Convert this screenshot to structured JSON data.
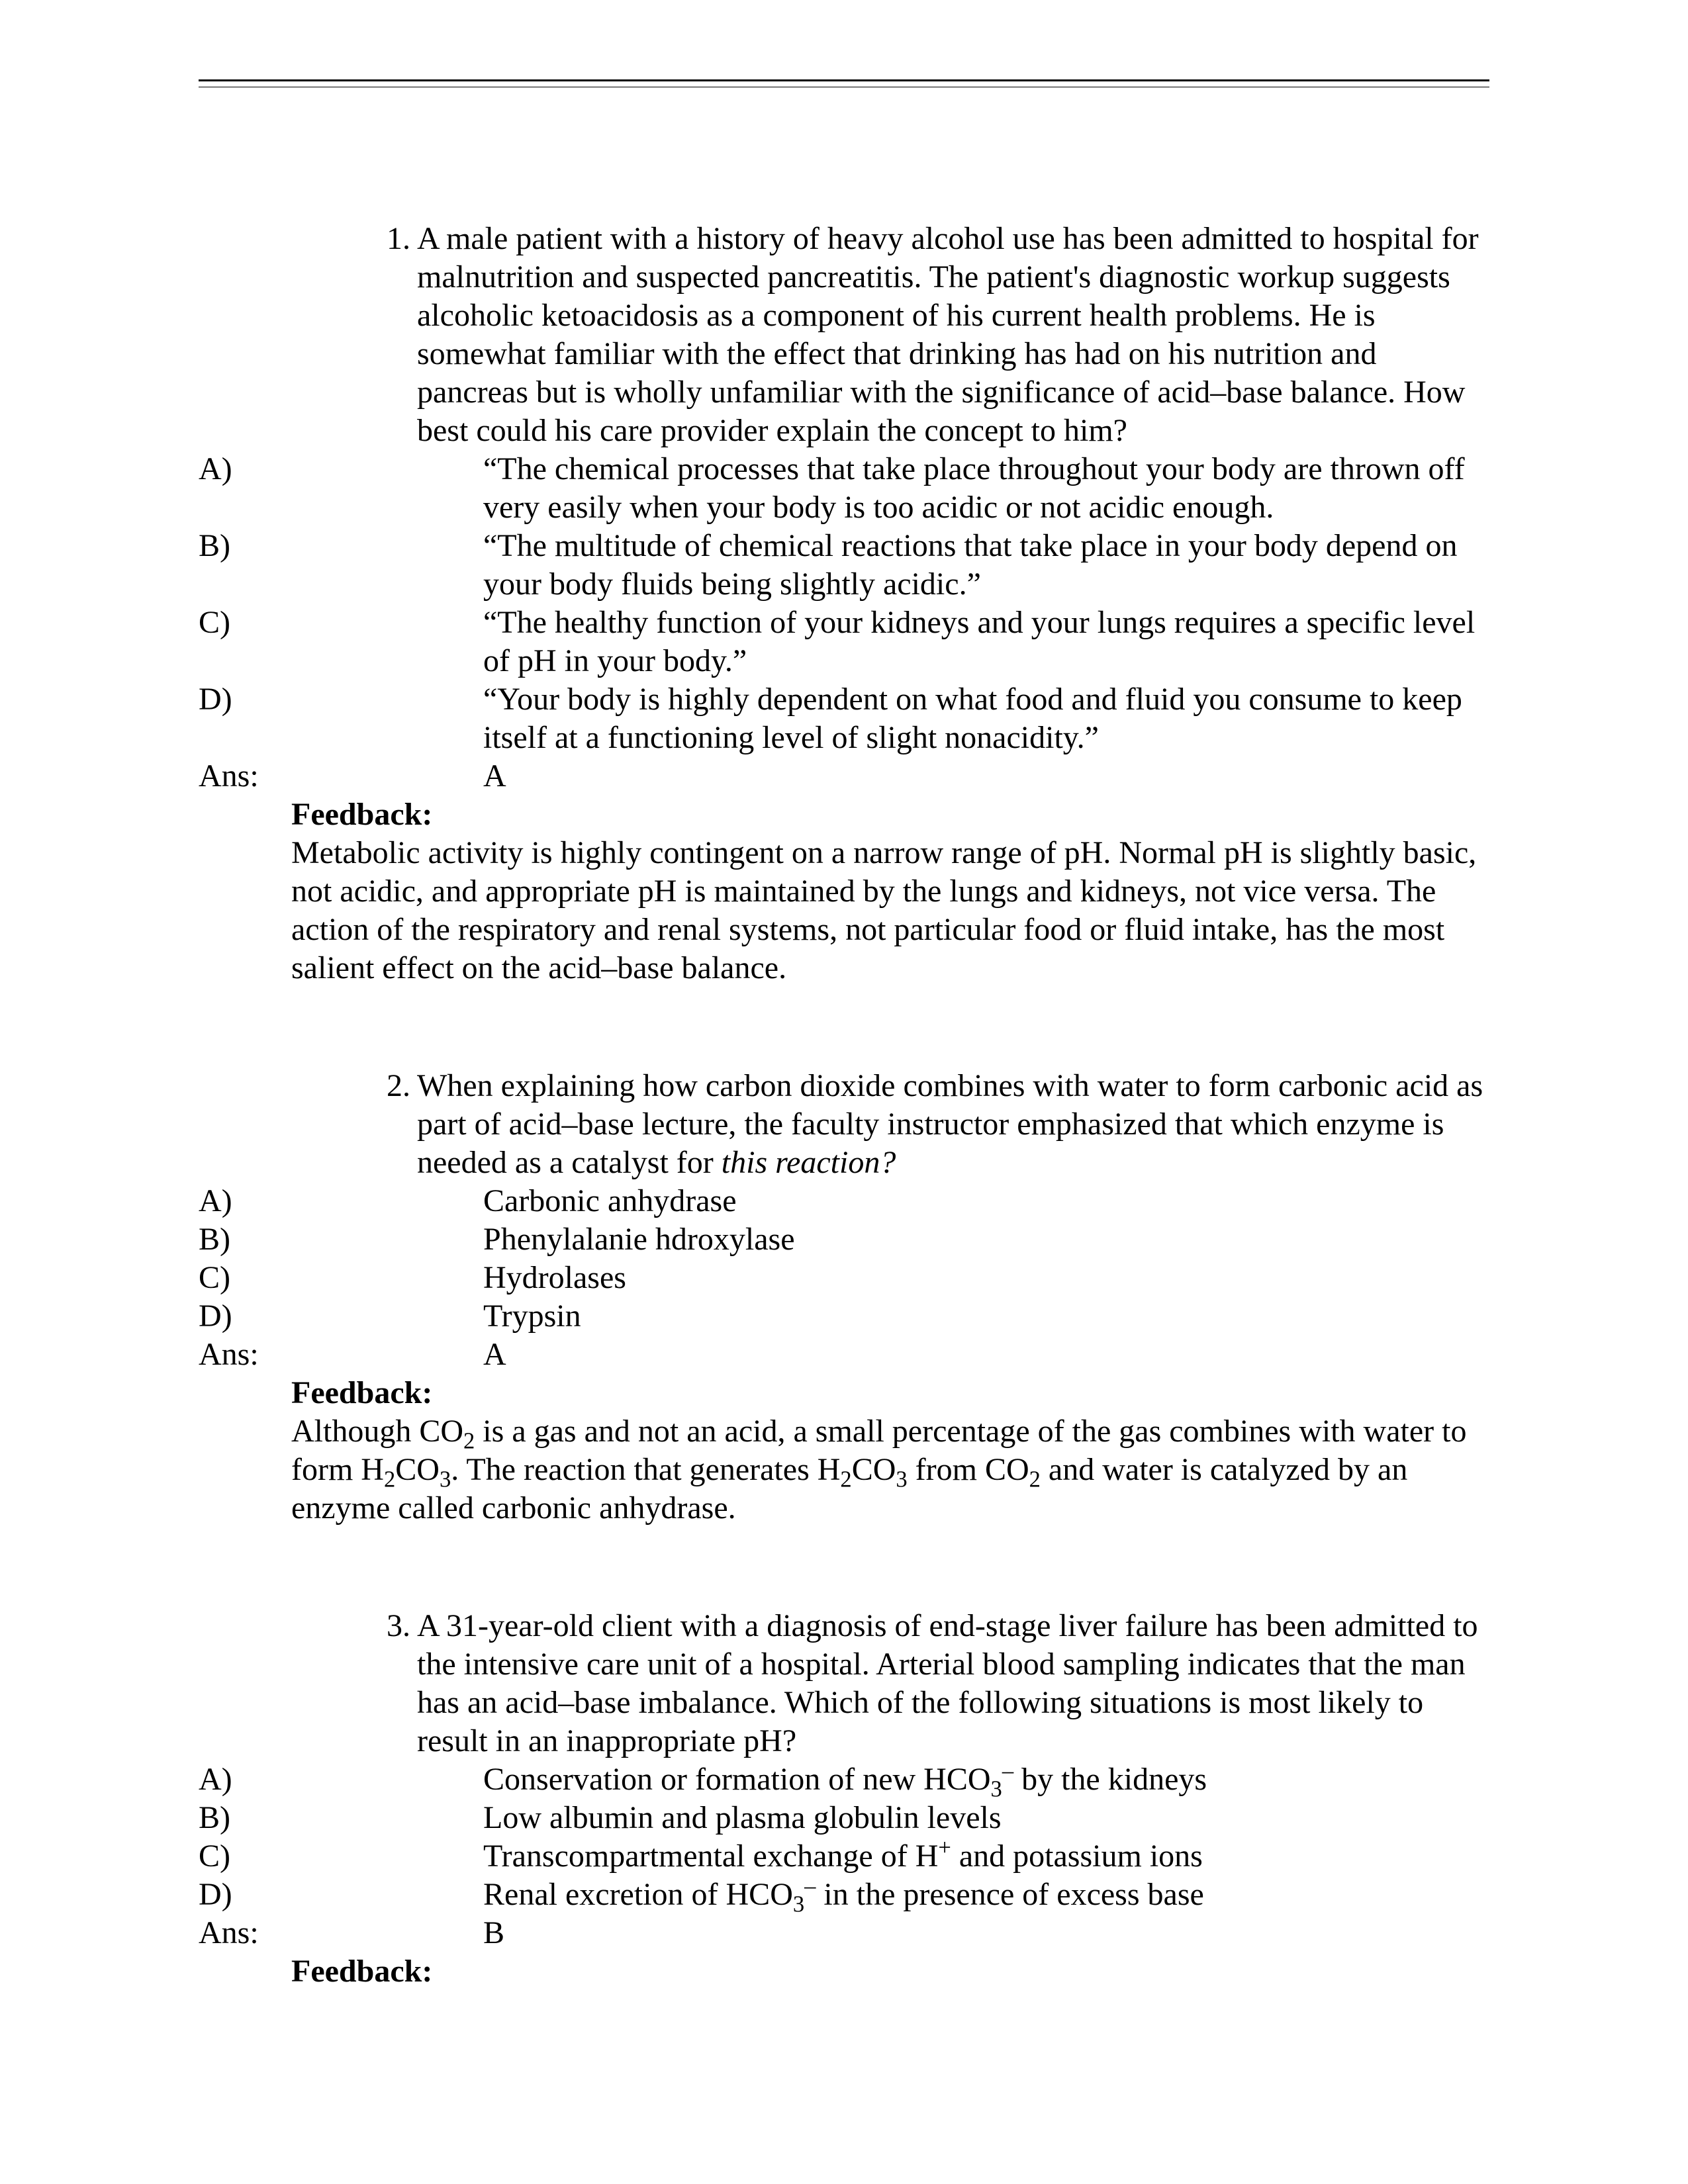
{
  "questions": [
    {
      "number": "1.",
      "stem": "A male patient with a history of heavy alcohol use has been admitted to hospital for malnutrition and suspected pancreatitis. The patient's diagnostic workup suggests alcoholic ketoacidosis as a component of his current health problems. He is somewhat familiar with the effect that drinking has had on his nutrition and pancreas but is wholly unfamiliar with the significance of acid–base balance. How best could his care provider explain the concept to him?",
      "choices": [
        {
          "label": "A)",
          "text": "“The chemical processes that take place throughout your body are thrown off very easily when your body is too acidic or not acidic enough."
        },
        {
          "label": "B)",
          "text": "“The multitude of chemical reactions that take place in your body depend on your body fluids being slightly acidic.”"
        },
        {
          "label": "C)",
          "text": "“The healthy function of your kidneys and your lungs requires a specific level of pH in your body.”"
        },
        {
          "label": "D)",
          "text": "“Your body is highly dependent on what food and fluid you consume to keep itself at a functioning level of slight nonacidity.”"
        }
      ],
      "ans_label": "Ans:",
      "ans": "A",
      "feedback_label": "Feedback:",
      "feedback": "Metabolic activity is highly contingent on a narrow range of pH. Normal pH is slightly basic, not acidic, and appropriate pH is maintained by the lungs and kidneys, not vice versa. The action of the respiratory and renal systems, not particular food or fluid intake, has the most salient effect on the acid–base balance."
    },
    {
      "number": "2.",
      "stem_pre": "When explaining how carbon dioxide combines with water to form carbonic acid as part of acid–base lecture, the faculty instructor emphasized that which enzyme is needed as a catalyst for ",
      "stem_italic": "this reaction?",
      "choices": [
        {
          "label": "A)",
          "text": "Carbonic anhydrase"
        },
        {
          "label": "B)",
          "text": "Phenylalanie hdroxylase"
        },
        {
          "label": "C)",
          "text": "Hydrolases"
        },
        {
          "label": "D)",
          "text": "Trypsin"
        }
      ],
      "ans_label": "Ans:",
      "ans": "A",
      "feedback_label": "Feedback:",
      "feedback_html": " Although CO<sub>2</sub> is a gas and not an acid, a small percentage of the gas combines with water to form H<sub>2</sub>CO<sub>3</sub>. The reaction that generates H<sub>2</sub>CO<sub>3</sub> from CO<sub>2</sub> and water is catalyzed by an enzyme called carbonic anhydrase."
    },
    {
      "number": "3.",
      "stem": "A 31-year-old client with a diagnosis of end-stage liver failure has been admitted to the intensive care unit of a hospital. Arterial blood sampling indicates that the man has an acid–base imbalance. Which of the following situations is most likely to result in an inappropriate pH?",
      "choices": [
        {
          "label": "A)",
          "html": "Conservation or formation of new HCO<sub>3</sub><sup>–</sup> by the kidneys"
        },
        {
          "label": "B)",
          "text": "Low albumin and plasma globulin levels"
        },
        {
          "label": "C)",
          "html": "Transcompartmental exchange of H<sup>+</sup> and potassium ions"
        },
        {
          "label": "D)",
          "html": "Renal excretion of HCO<sub>3</sub><sup>–</sup> in the presence of excess base"
        }
      ],
      "ans_label": "Ans:",
      "ans": "B",
      "feedback_label": "Feedback:"
    }
  ]
}
